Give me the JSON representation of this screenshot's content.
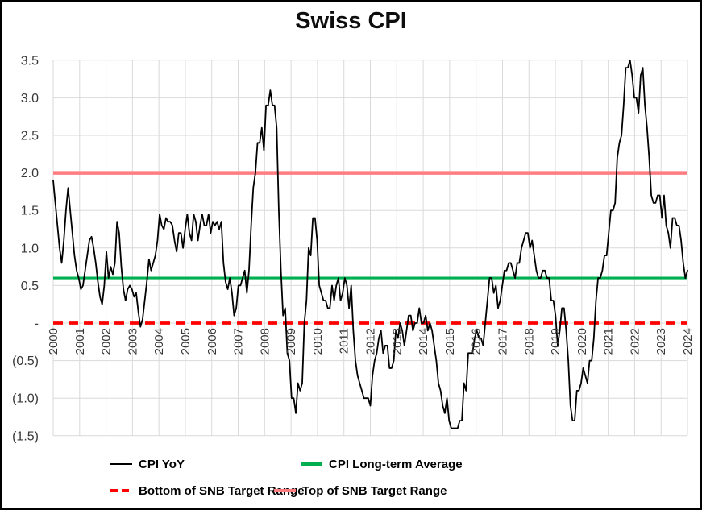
{
  "title": "Swiss CPI",
  "chart_data": {
    "type": "line",
    "title": "Swiss CPI",
    "x_unit": "month",
    "x_start": "2000-01",
    "x_end": "2024-11",
    "x_tick_labels": [
      "2000",
      "2001",
      "2002",
      "2003",
      "2004",
      "2005",
      "2006",
      "2007",
      "2008",
      "2009",
      "2010",
      "2011",
      "2012",
      "2013",
      "2014",
      "2015",
      "2016",
      "2017",
      "2018",
      "2019",
      "2020",
      "2021",
      "2022",
      "2023",
      "2024"
    ],
    "y_ticks": [
      {
        "value": 3.5,
        "label": "3.5"
      },
      {
        "value": 3.0,
        "label": "3.0"
      },
      {
        "value": 2.5,
        "label": "2.5"
      },
      {
        "value": 2.0,
        "label": "2.0"
      },
      {
        "value": 1.5,
        "label": "1.5"
      },
      {
        "value": 1.0,
        "label": "1.0"
      },
      {
        "value": 0.5,
        "label": "0.5"
      },
      {
        "value": 0.0,
        "label": "-"
      },
      {
        "value": -0.5,
        "label": "(0.5)"
      },
      {
        "value": -1.0,
        "label": "(1.0)"
      },
      {
        "value": -1.5,
        "label": "(1.5)"
      }
    ],
    "ylim": [
      -1.5,
      3.5
    ],
    "grid": true,
    "grid_color": "#d9d9d9",
    "tick_label_color": "#383838",
    "legend_position": "bottom",
    "series": [
      {
        "name": "CPI YoY",
        "type": "line",
        "color": "#000000",
        "width": 1.8,
        "dash": null,
        "values": [
          1.9,
          1.6,
          1.3,
          1.0,
          0.8,
          1.1,
          1.5,
          1.8,
          1.5,
          1.2,
          0.9,
          0.7,
          0.6,
          0.45,
          0.5,
          0.7,
          0.9,
          1.1,
          1.15,
          1.0,
          0.8,
          0.55,
          0.35,
          0.25,
          0.5,
          0.95,
          0.6,
          0.75,
          0.65,
          0.8,
          1.35,
          1.2,
          0.75,
          0.45,
          0.3,
          0.45,
          0.5,
          0.45,
          0.35,
          0.4,
          0.15,
          -0.05,
          0.05,
          0.3,
          0.55,
          0.85,
          0.7,
          0.8,
          0.9,
          1.1,
          1.45,
          1.3,
          1.25,
          1.4,
          1.35,
          1.35,
          1.3,
          1.1,
          0.95,
          1.2,
          1.2,
          1.0,
          1.25,
          1.45,
          1.2,
          1.1,
          1.45,
          1.35,
          1.1,
          1.3,
          1.45,
          1.3,
          1.3,
          1.45,
          1.2,
          1.35,
          1.3,
          1.35,
          1.25,
          1.35,
          0.8,
          0.55,
          0.45,
          0.6,
          0.4,
          0.1,
          0.2,
          0.5,
          0.5,
          0.6,
          0.7,
          0.4,
          0.7,
          1.3,
          1.8,
          2.0,
          2.4,
          2.4,
          2.6,
          2.3,
          2.9,
          2.9,
          3.1,
          2.9,
          2.9,
          2.6,
          1.5,
          0.7,
          0.1,
          0.2,
          -0.4,
          -0.5,
          -1.0,
          -1.0,
          -1.2,
          -0.8,
          -0.9,
          -0.8,
          0.0,
          0.3,
          1.0,
          0.9,
          1.4,
          1.4,
          1.1,
          0.5,
          0.4,
          0.3,
          0.3,
          0.2,
          0.2,
          0.5,
          0.3,
          0.5,
          0.6,
          0.3,
          0.4,
          0.6,
          0.5,
          0.2,
          0.5,
          -0.1,
          -0.5,
          -0.7,
          -0.8,
          -0.9,
          -1.0,
          -1.0,
          -1.0,
          -1.1,
          -0.7,
          -0.5,
          -0.4,
          -0.2,
          -0.1,
          -0.4,
          -0.3,
          -0.3,
          -0.6,
          -0.6,
          -0.5,
          -0.1,
          -0.2,
          0.0,
          -0.1,
          -0.3,
          -0.1,
          0.1,
          0.1,
          -0.1,
          0.0,
          0.0,
          0.2,
          0.0,
          0.0,
          0.1,
          -0.1,
          0.0,
          -0.1,
          -0.3,
          -0.5,
          -0.8,
          -0.9,
          -1.1,
          -1.2,
          -1.0,
          -1.3,
          -1.4,
          -1.4,
          -1.4,
          -1.4,
          -1.3,
          -1.3,
          -0.8,
          -0.9,
          -0.4,
          -0.4,
          -0.4,
          -0.2,
          -0.1,
          -0.2,
          -0.2,
          -0.3,
          0.0,
          0.3,
          0.6,
          0.6,
          0.4,
          0.5,
          0.2,
          0.3,
          0.5,
          0.7,
          0.7,
          0.8,
          0.8,
          0.7,
          0.6,
          0.8,
          0.8,
          1.0,
          1.1,
          1.2,
          1.2,
          1.0,
          1.1,
          0.9,
          0.7,
          0.6,
          0.6,
          0.7,
          0.7,
          0.6,
          0.6,
          0.3,
          0.3,
          0.1,
          -0.3,
          -0.1,
          0.2,
          0.2,
          -0.1,
          -0.5,
          -1.1,
          -1.3,
          -1.3,
          -0.9,
          -0.9,
          -0.8,
          -0.6,
          -0.7,
          -0.8,
          -0.5,
          -0.5,
          -0.2,
          0.3,
          0.6,
          0.6,
          0.7,
          0.9,
          0.9,
          1.2,
          1.5,
          1.5,
          1.6,
          2.2,
          2.4,
          2.5,
          2.9,
          3.4,
          3.4,
          3.5,
          3.3,
          3.0,
          3.0,
          2.8,
          3.3,
          3.4,
          2.9,
          2.6,
          2.2,
          1.7,
          1.6,
          1.6,
          1.7,
          1.7,
          1.4,
          1.7,
          1.3,
          1.2,
          1.0,
          1.4,
          1.4,
          1.3,
          1.3,
          1.1,
          0.8,
          0.6,
          0.7
        ]
      },
      {
        "name": "CPI Long-term Average",
        "type": "hline",
        "color": "#00B050",
        "width": 3.2,
        "dash": null,
        "value": 0.6
      },
      {
        "name": "Bottom of SNB Target Range",
        "type": "hline",
        "color": "#FF0000",
        "width": 3.8,
        "dash": [
          12,
          7
        ],
        "value": 0.0
      },
      {
        "name": "Top of SNB Target Range",
        "type": "hline",
        "color": "#FF7C80",
        "width": 4.5,
        "dash": null,
        "value": 2.0
      }
    ]
  },
  "legend": {
    "items": [
      {
        "label": "CPI YoY",
        "series": 0
      },
      {
        "label": "CPI Long-term Average",
        "series": 1
      },
      {
        "label": "Bottom of SNB Target Range",
        "series": 2
      },
      {
        "label": "Top of SNB Target Range",
        "series": 3
      }
    ]
  }
}
